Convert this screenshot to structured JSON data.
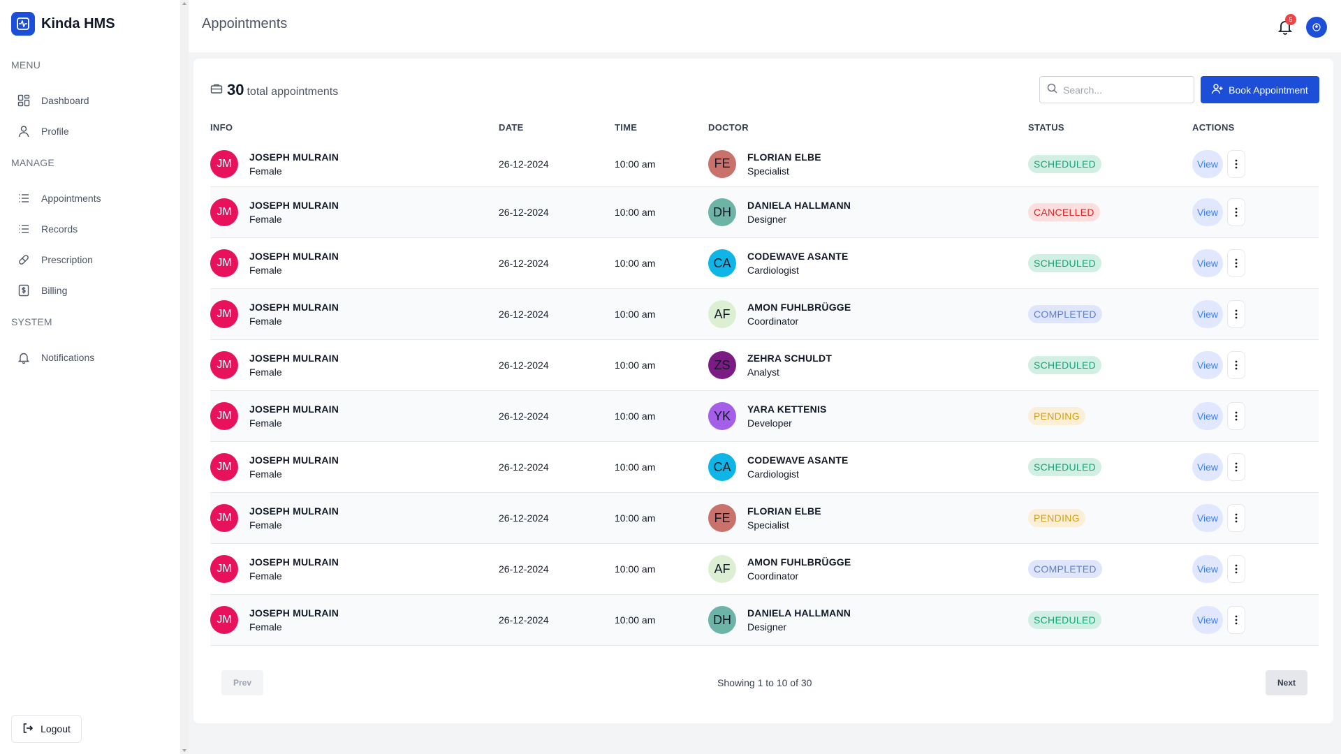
{
  "app": {
    "name": "Kinda HMS"
  },
  "sidebar": {
    "sections": [
      "MENU",
      "MANAGE",
      "SYSTEM"
    ],
    "items": [
      {
        "label": "Dashboard",
        "icon": "dashboard-icon"
      },
      {
        "label": "Profile",
        "icon": "user-icon"
      },
      {
        "label": "Appointments",
        "icon": "list-icon"
      },
      {
        "label": "Records",
        "icon": "list-icon"
      },
      {
        "label": "Prescription",
        "icon": "pill-icon"
      },
      {
        "label": "Billing",
        "icon": "dollar-icon"
      },
      {
        "label": "Notifications",
        "icon": "bell-icon"
      }
    ],
    "logout_label": "Logout"
  },
  "header": {
    "title": "Appointments",
    "notification_count": "5"
  },
  "summary": {
    "count": "30",
    "label": "total appointments"
  },
  "search": {
    "placeholder": "Search..."
  },
  "book_button": {
    "label": "Book Appointment"
  },
  "table": {
    "columns": [
      "INFO",
      "DATE",
      "TIME",
      "DOCTOR",
      "STATUS",
      "ACTIONS"
    ],
    "view_label": "View",
    "rows": [
      {
        "patient_initials": "JM",
        "patient_name": "JOSEPH MULRAIN",
        "gender": "Female",
        "date": "26-12-2024",
        "time": "10:00 am",
        "doctor_initials": "FE",
        "doctor_name": "FLORIAN ELBE",
        "role": "Specialist",
        "status": "SCHEDULED"
      },
      {
        "patient_initials": "JM",
        "patient_name": "JOSEPH MULRAIN",
        "gender": "Female",
        "date": "26-12-2024",
        "time": "10:00 am",
        "doctor_initials": "DH",
        "doctor_name": "DANIELA HALLMANN",
        "role": "Designer",
        "status": "CANCELLED"
      },
      {
        "patient_initials": "JM",
        "patient_name": "JOSEPH MULRAIN",
        "gender": "Female",
        "date": "26-12-2024",
        "time": "10:00 am",
        "doctor_initials": "CA",
        "doctor_name": "CODEWAVE ASANTE",
        "role": "Cardiologist",
        "status": "SCHEDULED"
      },
      {
        "patient_initials": "JM",
        "patient_name": "JOSEPH MULRAIN",
        "gender": "Female",
        "date": "26-12-2024",
        "time": "10:00 am",
        "doctor_initials": "AF",
        "doctor_name": "AMON FUHLBRÜGGE",
        "role": "Coordinator",
        "status": "COMPLETED"
      },
      {
        "patient_initials": "JM",
        "patient_name": "JOSEPH MULRAIN",
        "gender": "Female",
        "date": "26-12-2024",
        "time": "10:00 am",
        "doctor_initials": "ZS",
        "doctor_name": "ZEHRA SCHULDT",
        "role": "Analyst",
        "status": "SCHEDULED"
      },
      {
        "patient_initials": "JM",
        "patient_name": "JOSEPH MULRAIN",
        "gender": "Female",
        "date": "26-12-2024",
        "time": "10:00 am",
        "doctor_initials": "YK",
        "doctor_name": "YARA KETTENIS",
        "role": "Developer",
        "status": "PENDING"
      },
      {
        "patient_initials": "JM",
        "patient_name": "JOSEPH MULRAIN",
        "gender": "Female",
        "date": "26-12-2024",
        "time": "10:00 am",
        "doctor_initials": "CA",
        "doctor_name": "CODEWAVE ASANTE",
        "role": "Cardiologist",
        "status": "SCHEDULED"
      },
      {
        "patient_initials": "JM",
        "patient_name": "JOSEPH MULRAIN",
        "gender": "Female",
        "date": "26-12-2024",
        "time": "10:00 am",
        "doctor_initials": "FE",
        "doctor_name": "FLORIAN ELBE",
        "role": "Specialist",
        "status": "PENDING"
      },
      {
        "patient_initials": "JM",
        "patient_name": "JOSEPH MULRAIN",
        "gender": "Female",
        "date": "26-12-2024",
        "time": "10:00 am",
        "doctor_initials": "AF",
        "doctor_name": "AMON FUHLBRÜGGE",
        "role": "Coordinator",
        "status": "COMPLETED"
      },
      {
        "patient_initials": "JM",
        "patient_name": "JOSEPH MULRAIN",
        "gender": "Female",
        "date": "26-12-2024",
        "time": "10:00 am",
        "doctor_initials": "DH",
        "doctor_name": "DANIELA HALLMANN",
        "role": "Designer",
        "status": "SCHEDULED"
      }
    ]
  },
  "pagination": {
    "prev_label": "Prev",
    "next_label": "Next",
    "showing_text": "Showing 1 to 10 of 30"
  },
  "colors": {
    "primary": "#1d4ed8",
    "patient_avatar": "#e8115b",
    "doctor_avatars": {
      "FE": "#c9716b",
      "DH": "#6db4a6",
      "CA": "#0eb5e6",
      "AF": "#dcefd3",
      "ZS": "#7b1b83",
      "YK": "#a45ee8"
    },
    "status": {
      "SCHEDULED": {
        "bg": "#d1f0e3",
        "fg": "#16a37a"
      },
      "CANCELLED": {
        "bg": "#fcdede",
        "fg": "#dc2626"
      },
      "COMPLETED": {
        "bg": "#dfe6fb",
        "fg": "#5b7fd8"
      },
      "PENDING": {
        "bg": "#fbefd7",
        "fg": "#d4a017"
      }
    }
  }
}
